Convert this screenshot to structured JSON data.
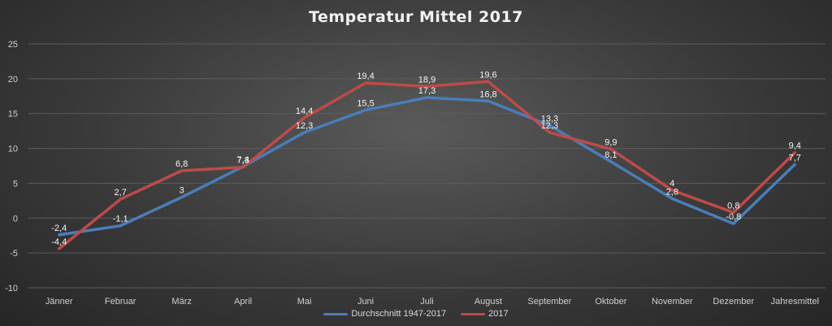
{
  "chart_data": {
    "type": "line",
    "title": "Temperatur Mittel 2017",
    "categories": [
      "Jänner",
      "Februar",
      "März",
      "April",
      "Mai",
      "Juni",
      "Juli",
      "August",
      "September",
      "Oktober",
      "November",
      "Dezember",
      "Jahresmittel"
    ],
    "ylim": [
      -10,
      25
    ],
    "yticks": [
      -10,
      -5,
      0,
      5,
      10,
      15,
      20,
      25
    ],
    "grid": true,
    "legend_position": "bottom",
    "series": [
      {
        "name": "Durchschnitt 1947-2017",
        "color": "#4a7ebb",
        "values": [
          -2.4,
          -1.1,
          3,
          7.4,
          12.3,
          15.5,
          17.3,
          16.8,
          13.3,
          8.1,
          2.8,
          -0.8,
          7.7
        ],
        "labels": [
          "-2,4",
          "-1,1",
          "3",
          "7,4",
          "12,3",
          "15,5",
          "17,3",
          "16,8",
          "13,3",
          "8,1",
          "2,8",
          "-0,8",
          "7,7"
        ]
      },
      {
        "name": "2017",
        "color": "#be4b48",
        "values": [
          -4.4,
          2.7,
          6.8,
          7.3,
          14.4,
          19.4,
          18.9,
          19.6,
          12.3,
          9.9,
          4,
          0.8,
          9.4
        ],
        "labels": [
          "-4,4",
          "2,7",
          "6,8",
          "7,3",
          "14,4",
          "19,4",
          "18,9",
          "19,6",
          "12,3",
          "9,9",
          "4",
          "0,8",
          "9,4"
        ]
      }
    ]
  }
}
